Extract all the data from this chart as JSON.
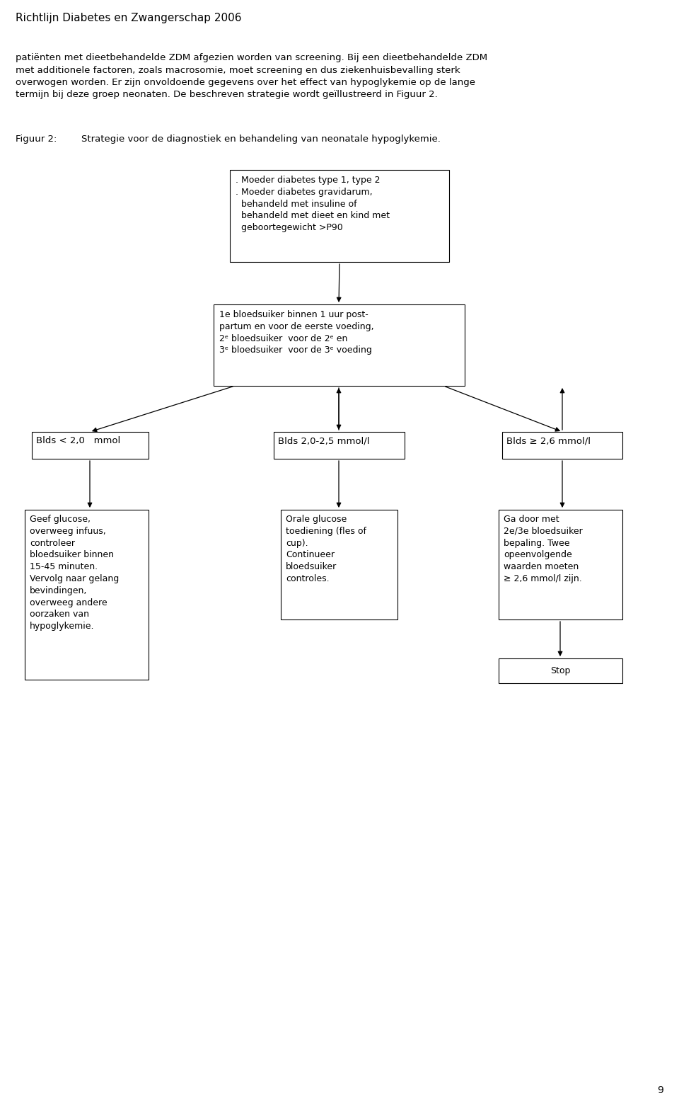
{
  "page_width": 9.6,
  "page_height": 15.65,
  "dpi": 100,
  "bg_color": "#ffffff",
  "text_color": "#000000",
  "header_text": "Richtlijn Diabetes en Zwangerschap 2006",
  "body_text": "patiënten met dieetbehandelde ZDM afgezien worden van screening. Bij een dieetbehandelde ZDM\nmet additionele factoren, zoals macrosomie, moet screening en dus ziekenhuisbevalling sterk\noverwogen worden. Er zijn onvoldoende gegevens over het effect van hypoglykemie op de lange\ntermijn bij deze groep neonaten. De beschreven strategie wordt geïllustreerd in Figuur 2.",
  "figuur_label": "Figuur 2:",
  "figuur_title": "Strategie voor de diagnostiek en behandeling van neonatale hypoglykemie.",
  "page_number": "9",
  "box1_text": ". Moeder diabetes type 1, type 2\n. Moeder diabetes gravidarum,\n  behandeld met insuline of\n  behandeld met dieet en kind met\n  geboortegewicht >P90",
  "box2_text": "1e bloedsuiker binnen 1 uur post-\npartum en voor de eerste voeding,\n2ᵉ bloedsuiker  voor de 2ᵉ en\n3ᵉ bloedsuiker  voor de 3ᵉ voeding",
  "box_left_label": "Blds < 2,0   mmol",
  "box_mid_label": "Blds 2,0-2,5 mmol/l",
  "box_right_label": "Blds ≥ 2,6 mmol/l",
  "box_left_text": "Geef glucose,\noverweeg infuus,\ncontroleer\nbloedsuiker binnen\n15-45 minuten.\nVervolg naar gelang\nbevindingen,\noverweeg andere\noorzaken van\nhypoglykemie.",
  "box_mid_text": "Orale glucose\ntoediening (fles of\ncup).\nContinueer\nbloedsuiker\ncontroles.",
  "box_right_text": "Ga door met\n2e/3e bloedsuiker\nbepaling. Twee\nopeenvolgende\nwaarden moeten\n≥ 2,6 mmol/l zijn.",
  "box_stop_text": "Stop",
  "font_size_header": 11,
  "font_size_body": 9.5,
  "font_size_box": 9,
  "font_size_label": 9.5,
  "font_size_figuur": 9.5,
  "font_name": "DejaVu Sans"
}
